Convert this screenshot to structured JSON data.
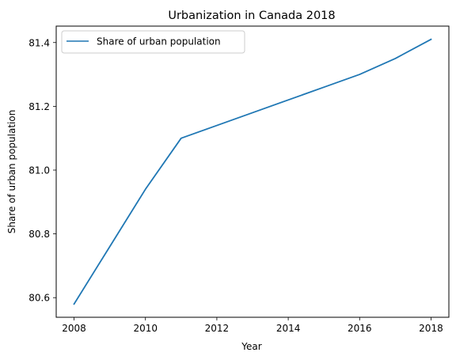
{
  "chart_data": {
    "type": "line",
    "title": "Urbanization in Canada 2018",
    "xlabel": "Year",
    "ylabel": "Share of urban population",
    "x": [
      2008,
      2009,
      2010,
      2011,
      2012,
      2013,
      2014,
      2015,
      2016,
      2017,
      2018
    ],
    "series": [
      {
        "name": "Share of urban population",
        "values": [
          80.58,
          80.76,
          80.94,
          81.1,
          81.14,
          81.18,
          81.22,
          81.26,
          81.3,
          81.35,
          81.41
        ],
        "color": "#1f77b4"
      }
    ],
    "xlim": [
      2007.5,
      2018.5
    ],
    "ylim": [
      80.5385,
      81.4515
    ],
    "xticks": [
      "2008",
      "2010",
      "2012",
      "2014",
      "2016",
      "2018"
    ],
    "yticks": [
      "80.6",
      "80.8",
      "81.0",
      "81.2",
      "81.4"
    ],
    "legend_position": "upper-left",
    "grid": false
  }
}
